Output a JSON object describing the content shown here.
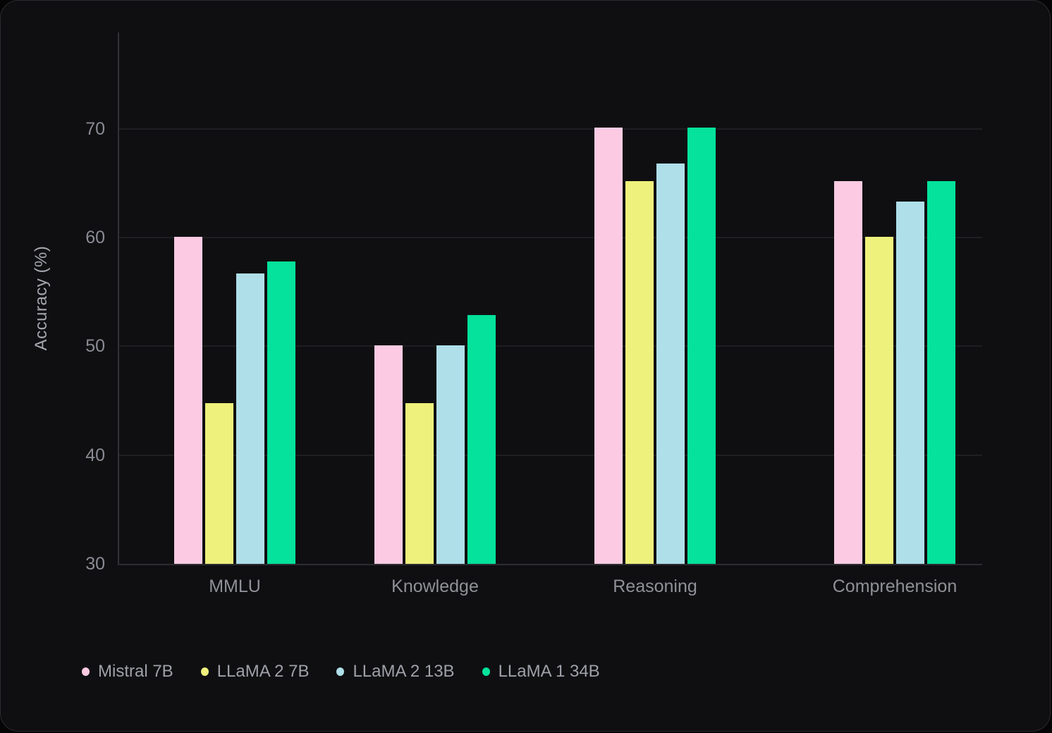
{
  "chart_data": {
    "type": "bar",
    "title": "",
    "xlabel": "",
    "ylabel": "Accuracy (%)",
    "categories": [
      "MMLU",
      "Knowledge",
      "Reasoning",
      "Comprehension"
    ],
    "series": [
      {
        "name": "Mistral 7B",
        "color": "#fccbe3",
        "values": [
          60.1,
          50.1,
          70.1,
          65.2
        ]
      },
      {
        "name": "LLaMA 2 7B",
        "color": "#eef17b",
        "values": [
          44.8,
          44.8,
          65.2,
          60.1
        ]
      },
      {
        "name": "LLaMA 2 13B",
        "color": "#afdfe9",
        "values": [
          56.7,
          50.1,
          66.8,
          63.3
        ]
      },
      {
        "name": "LLaMA 1 34B",
        "color": "#04e29b",
        "values": [
          57.8,
          52.9,
          70.1,
          65.2
        ]
      }
    ],
    "ylim": [
      30,
      78.9
    ],
    "yticks": [
      30,
      40,
      50,
      60,
      70
    ],
    "grid": true,
    "legend_position": "bottom-left",
    "colors": {
      "panel_background": "#0f0f11",
      "outer_background": "#050506",
      "gridline": "#1e1e23",
      "axis": "#2f2f36",
      "tick_text": "#8a8b93",
      "category_text": "#8f9098",
      "legend_text": "#9fa1a9",
      "ylabel_text": "#a4a6ae"
    }
  }
}
